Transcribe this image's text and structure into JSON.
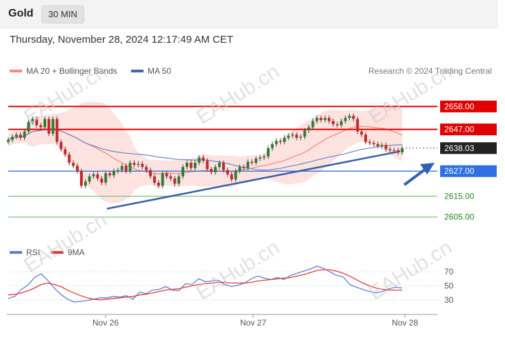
{
  "header": {
    "symbol": "Gold",
    "timeframe": "30 MIN",
    "datetime": "Thursday, November 28, 2024 12:17:49 AM CET"
  },
  "legend": {
    "items": [
      {
        "label": "MA 20 + Bollinger Bands",
        "color": "#f28b82"
      },
      {
        "label": "MA 50",
        "color": "#3f63b5"
      }
    ],
    "credit": "Research © 2024 Trading Central"
  },
  "rsi_legend": {
    "items": [
      {
        "label": "RSI",
        "color": "#5b7fd6"
      },
      {
        "label": "9MA",
        "color": "#e53935"
      }
    ]
  },
  "watermark": "EAHub.cn",
  "chart_data": [
    {
      "type": "line",
      "name": "price",
      "x_ticks": [
        "Nov 26",
        "Nov 27",
        "Nov 28"
      ],
      "ylim": [
        2595,
        2672
      ],
      "levels": [
        {
          "value": 2658.0,
          "label": "2658.00",
          "style": "resistance",
          "color": "#e00000"
        },
        {
          "value": 2647.0,
          "label": "2647.00",
          "style": "resistance",
          "color": "#e00000"
        },
        {
          "value": 2638.03,
          "label": "2638.03",
          "style": "current",
          "color": "#222222"
        },
        {
          "value": 2627.0,
          "label": "2627.00",
          "style": "pivot",
          "color": "#2f6fe4"
        },
        {
          "value": 2615.0,
          "label": "2615.00",
          "style": "support",
          "color": "#1e8a1e"
        },
        {
          "value": 2605.0,
          "label": "2605.00",
          "style": "support",
          "color": "#1e8a1e"
        }
      ],
      "close": [
        2642.0,
        2643.5,
        2644.5,
        2643.0,
        2646.0,
        2650.5,
        2652.0,
        2649.0,
        2648.0,
        2652.0,
        2645.0,
        2652.0,
        2641.0,
        2637.5,
        2635.0,
        2631.0,
        2629.5,
        2627.0,
        2620.0,
        2622.0,
        2624.5,
        2625.5,
        2623.5,
        2621.5,
        2626.0,
        2625.0,
        2627.0,
        2627.5,
        2629.5,
        2627.0,
        2631.0,
        2630.0,
        2630.5,
        2629.0,
        2627.5,
        2624.5,
        2621.5,
        2620.0,
        2626.0,
        2624.5,
        2623.5,
        2621.0,
        2624.5,
        2629.0,
        2631.0,
        2628.5,
        2631.0,
        2633.5,
        2632.0,
        2628.0,
        2626.5,
        2629.0,
        2631.0,
        2627.5,
        2625.5,
        2623.0,
        2627.0,
        2629.0,
        2628.5,
        2631.5,
        2631.0,
        2633.0,
        2633.5,
        2634.0,
        2638.0,
        2640.0,
        2641.5,
        2641.0,
        2643.0,
        2644.0,
        2644.5,
        2643.0,
        2643.5,
        2646.5,
        2648.0,
        2651.0,
        2652.5,
        2651.5,
        2652.5,
        2651.0,
        2649.5,
        2649.0,
        2651.0,
        2652.5,
        2653.5,
        2652.0,
        2646.0,
        2644.5,
        2641.0,
        2640.5,
        2640.0,
        2639.0,
        2639.5,
        2637.5,
        2637.0,
        2637.0,
        2636.0,
        2638.0
      ]
    },
    {
      "type": "line",
      "name": "RSI",
      "x_ticks": [
        "Nov 26",
        "Nov 27",
        "Nov 28"
      ],
      "ylim": [
        20,
        80
      ],
      "y_ticks": [
        70,
        50,
        30
      ],
      "series": [
        {
          "name": "RSI",
          "color": "#5b7fd6",
          "values": [
            32,
            35,
            45,
            51,
            62,
            67,
            58,
            47,
            38,
            31,
            27,
            28,
            29,
            31,
            33,
            33,
            35,
            34,
            36,
            31,
            41,
            39,
            44,
            45,
            49,
            44,
            43,
            53,
            52,
            60,
            56,
            57,
            58,
            52,
            49,
            51,
            54,
            60,
            64,
            61,
            59,
            62,
            59,
            65,
            68,
            71,
            74,
            78,
            75,
            70,
            65,
            63,
            52,
            48,
            45,
            42,
            40,
            42,
            46,
            48,
            47
          ]
        },
        {
          "name": "9MA",
          "color": "#e53935",
          "values": [
            37,
            38,
            40,
            43,
            47,
            52,
            54,
            52,
            49,
            44,
            40,
            36,
            33,
            31,
            30,
            31,
            32,
            33,
            34,
            35,
            37,
            38,
            40,
            42,
            44,
            45,
            46,
            48,
            50,
            52,
            53,
            54,
            55,
            55,
            54,
            54,
            54,
            55,
            57,
            58,
            59,
            60,
            61,
            62,
            64,
            66,
            69,
            72,
            73,
            73,
            71,
            68,
            64,
            59,
            54,
            50,
            47,
            45,
            44,
            44,
            44
          ]
        }
      ]
    }
  ]
}
